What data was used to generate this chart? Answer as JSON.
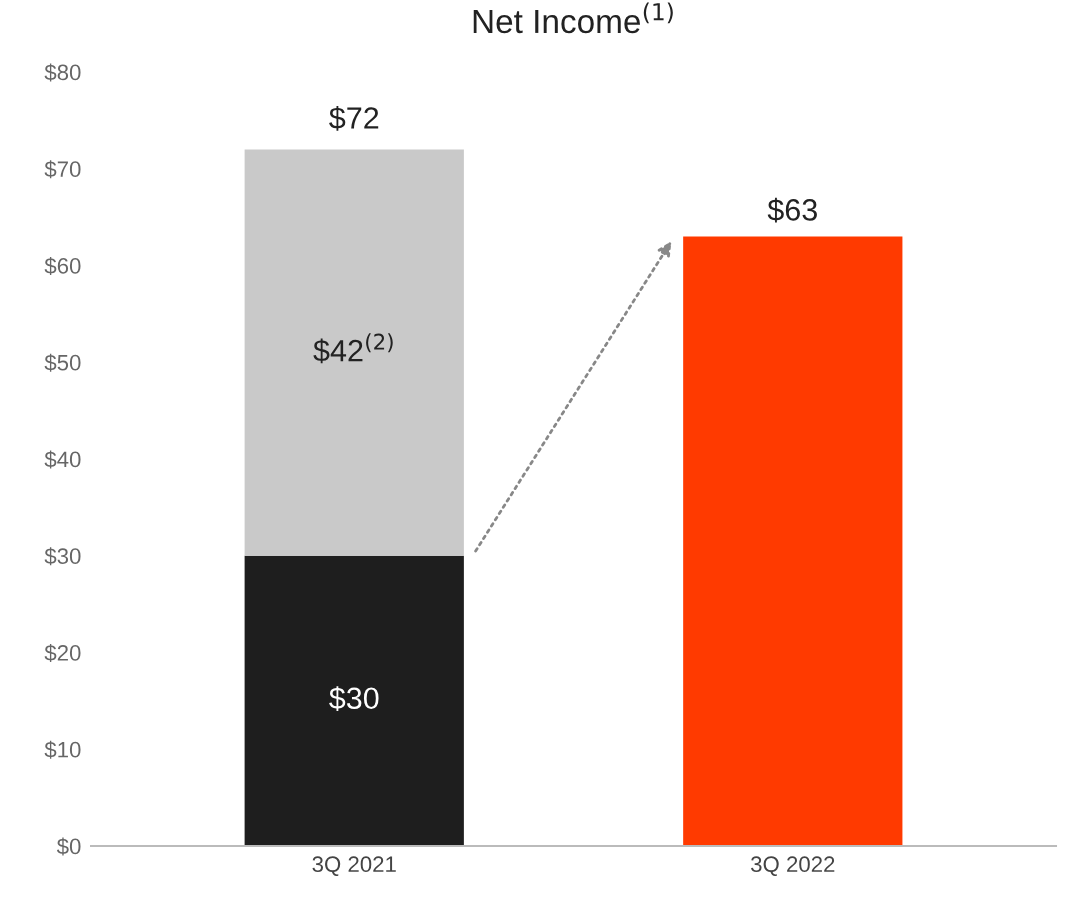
{
  "chart_data": {
    "type": "bar",
    "title": "Net Income$^{(1)}$",
    "stacked": true,
    "categories": [
      "3Q 2021",
      "3Q 2022"
    ],
    "series": [
      {
        "colors": [
          "#1e1e1e",
          "#ff3a00"
        ],
        "values": [
          30,
          63
        ],
        "value_labels": [
          "$30",
          "$63"
        ]
      },
      {
        "color": "#c9c9c9",
        "values": [
          42,
          null
        ],
        "value_labels": [
          "$42$^{(2)}$",
          null
        ]
      }
    ],
    "totals": [
      "$72",
      null
    ],
    "ylim": [
      0,
      80
    ],
    "yticks": [
      {
        "value": 0,
        "label": "$0"
      },
      {
        "value": 10,
        "label": "$10"
      },
      {
        "value": 20,
        "label": "$20"
      },
      {
        "value": 30,
        "label": "$30"
      },
      {
        "value": 40,
        "label": "$40"
      },
      {
        "value": 50,
        "label": "$50"
      },
      {
        "value": 60,
        "label": "$60"
      },
      {
        "value": 70,
        "label": "$70"
      },
      {
        "value": 80,
        "label": "$80"
      }
    ],
    "grid": false,
    "legend": false
  }
}
